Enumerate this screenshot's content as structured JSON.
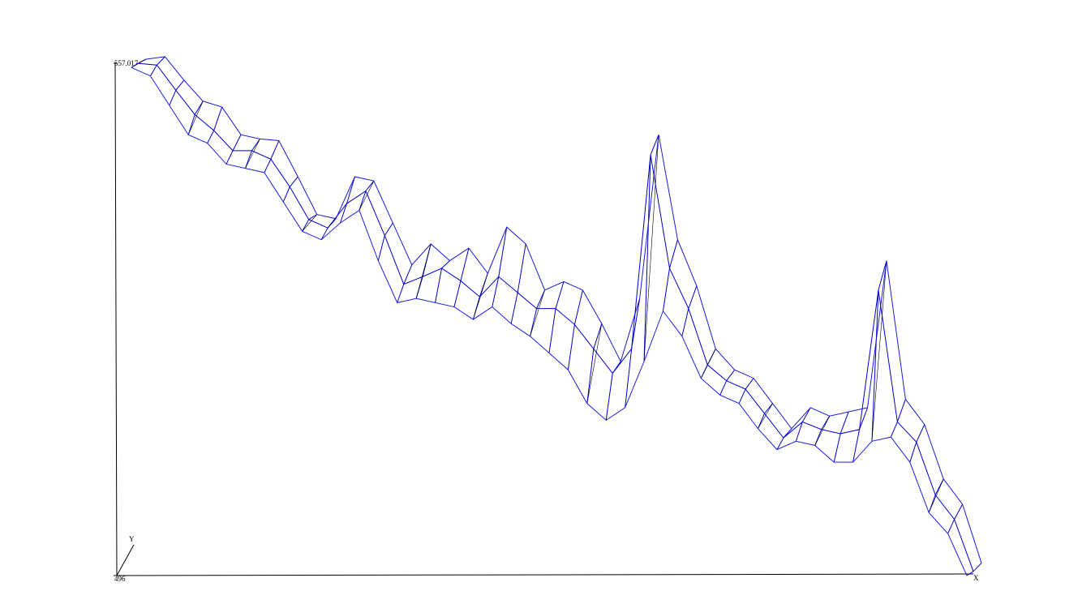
{
  "chart_data": {
    "type": "wireframe",
    "x_label": "X",
    "depth_label": "Y",
    "ylim": [
      496,
      557.017
    ],
    "yticks": [
      496,
      557.017
    ],
    "color": "#0000cc",
    "series": [
      {
        "color": "#1a1ad6",
        "values": [
          557.5,
          557.8,
          555.0,
          552.5,
          551.8,
          548.5,
          548.0,
          547.8,
          543.5,
          539.0,
          538.5,
          543.5,
          543.0,
          538.0,
          533.0,
          535.5,
          533.5,
          535.0,
          532.0,
          537.5,
          535.5,
          530.0,
          531.0,
          530.0,
          526.0,
          521.5,
          529.0,
          548.5,
          536.0,
          530.5,
          523.0,
          520.5,
          519.5,
          516.5,
          513.5,
          516.0,
          515.0,
          515.5,
          516.0,
          533.5,
          517.0,
          514.0,
          507.5,
          504.5,
          497.5
        ]
      },
      {
        "color": "#0000cc",
        "values": [
          557.0,
          556.8,
          553.8,
          550.9,
          549.0,
          546.6,
          546.6,
          545.6,
          542.3,
          538.4,
          537.4,
          540.3,
          541.8,
          536.5,
          530.7,
          531.6,
          532.6,
          531.1,
          529.2,
          531.6,
          529.7,
          527.8,
          527.8,
          525.9,
          523.0,
          520.1,
          523.0,
          546.1,
          532.6,
          527.8,
          521.1,
          519.2,
          518.2,
          515.3,
          512.4,
          514.3,
          513.4,
          512.9,
          513.4,
          530.0,
          514.3,
          511.9,
          505.6,
          502.7,
          496.5
        ]
      },
      {
        "color": "#2020e0",
        "values": [
          556.5,
          555.5,
          552.0,
          548.5,
          547.5,
          545.0,
          544.5,
          544.0,
          540.5,
          537.0,
          536.0,
          538.0,
          539.5,
          533.5,
          528.5,
          529.0,
          528.5,
          528.0,
          526.5,
          528.0,
          526.0,
          524.5,
          522.5,
          520.5,
          516.5,
          514.5,
          516.0,
          521.5,
          527.5,
          524.5,
          519.5,
          517.5,
          516.5,
          513.5,
          511.0,
          512.0,
          511.5,
          509.5,
          509.5,
          512.0,
          512.5,
          509.5,
          503.5,
          501.0,
          496.0
        ]
      }
    ]
  }
}
